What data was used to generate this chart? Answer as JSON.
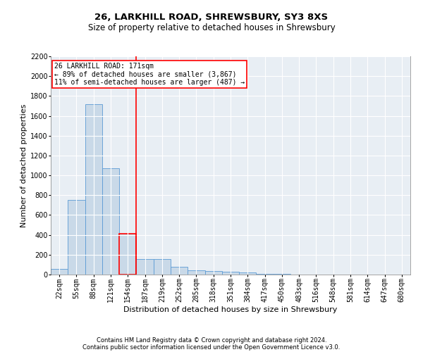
{
  "title1": "26, LARKHILL ROAD, SHREWSBURY, SY3 8XS",
  "title2": "Size of property relative to detached houses in Shrewsbury",
  "xlabel": "Distribution of detached houses by size in Shrewsbury",
  "ylabel": "Number of detached properties",
  "footnote1": "Contains HM Land Registry data © Crown copyright and database right 2024.",
  "footnote2": "Contains public sector information licensed under the Open Government Licence v3.0.",
  "bins": [
    "22sqm",
    "55sqm",
    "88sqm",
    "121sqm",
    "154sqm",
    "187sqm",
    "219sqm",
    "252sqm",
    "285sqm",
    "318sqm",
    "351sqm",
    "384sqm",
    "417sqm",
    "450sqm",
    "483sqm",
    "516sqm",
    "548sqm",
    "581sqm",
    "614sqm",
    "647sqm",
    "680sqm"
  ],
  "values": [
    55,
    750,
    1720,
    1070,
    415,
    155,
    155,
    75,
    40,
    35,
    25,
    20,
    10,
    5,
    2,
    1,
    1,
    0,
    0,
    0,
    0
  ],
  "highlight_bin_index": 4,
  "bar_color": "#c9d9e8",
  "bar_edge_color": "#5b9bd5",
  "highlight_bar_edge_color": "red",
  "vline_color": "red",
  "annotation_text": "26 LARKHILL ROAD: 171sqm\n← 89% of detached houses are smaller (3,867)\n11% of semi-detached houses are larger (487) →",
  "annotation_box_edge_color": "red",
  "ylim": [
    0,
    2200
  ],
  "yticks": [
    0,
    200,
    400,
    600,
    800,
    1000,
    1200,
    1400,
    1600,
    1800,
    2000,
    2200
  ],
  "background_color": "#e8eef4",
  "grid_color": "white",
  "title_fontsize": 9.5,
  "subtitle_fontsize": 8.5,
  "axis_label_fontsize": 8,
  "tick_fontsize": 7,
  "footnote_fontsize": 6,
  "bar_width": 1.0
}
